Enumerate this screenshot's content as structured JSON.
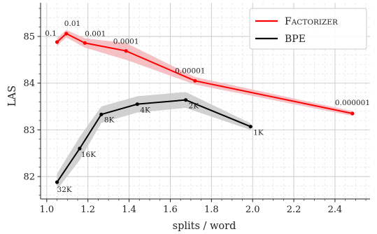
{
  "chart_data": {
    "type": "line",
    "title": "",
    "xlabel": "splits / word",
    "ylabel": "LAS",
    "xlim": [
      0.97,
      2.57
    ],
    "ylim": [
      81.52,
      85.72
    ],
    "xticks": [
      "1.0",
      "1.2",
      "1.4",
      "1.6",
      "1.8",
      "2.0",
      "2.2",
      "2.4"
    ],
    "yticks": [
      "82",
      "83",
      "84",
      "85"
    ],
    "grid": true,
    "legend": "top-right",
    "series": [
      {
        "name": "Factorizer",
        "legend_parts": [
          "F",
          "ACTORIZER"
        ],
        "color": "#ff0000",
        "band_color": "#f4b6bb",
        "points": [
          {
            "x": 1.05,
            "y": 84.88,
            "lo": 84.8,
            "hi": 84.96,
            "label": "0.1"
          },
          {
            "x": 1.095,
            "y": 85.06,
            "lo": 84.98,
            "hi": 85.14,
            "label": "0.01"
          },
          {
            "x": 1.185,
            "y": 84.86,
            "lo": 84.76,
            "hi": 84.96,
            "label": "0.001"
          },
          {
            "x": 1.385,
            "y": 84.69,
            "lo": 84.5,
            "hi": 84.86,
            "label": "0.0001"
          },
          {
            "x": 1.72,
            "y": 84.05,
            "lo": 83.97,
            "hi": 84.13,
            "label": "0.00001"
          },
          {
            "x": 2.485,
            "y": 83.35,
            "lo": 83.3,
            "hi": 83.4,
            "label": "0.000001"
          }
        ]
      },
      {
        "name": "BPE",
        "color": "#000000",
        "band_color": "#c9c9c9",
        "points": [
          {
            "x": 1.05,
            "y": 81.88,
            "lo": 81.72,
            "hi": 82.06,
            "label": "32K"
          },
          {
            "x": 1.16,
            "y": 82.6,
            "lo": 82.35,
            "hi": 82.85,
            "label": "16K"
          },
          {
            "x": 1.265,
            "y": 83.33,
            "lo": 83.15,
            "hi": 83.5,
            "label": "8K"
          },
          {
            "x": 1.44,
            "y": 83.55,
            "lo": 83.37,
            "hi": 83.72,
            "label": "4K"
          },
          {
            "x": 1.675,
            "y": 83.64,
            "lo": 83.47,
            "hi": 83.81,
            "label": "2K"
          },
          {
            "x": 1.99,
            "y": 83.07,
            "lo": 83.0,
            "hi": 83.14,
            "label": "1K"
          }
        ]
      }
    ]
  }
}
